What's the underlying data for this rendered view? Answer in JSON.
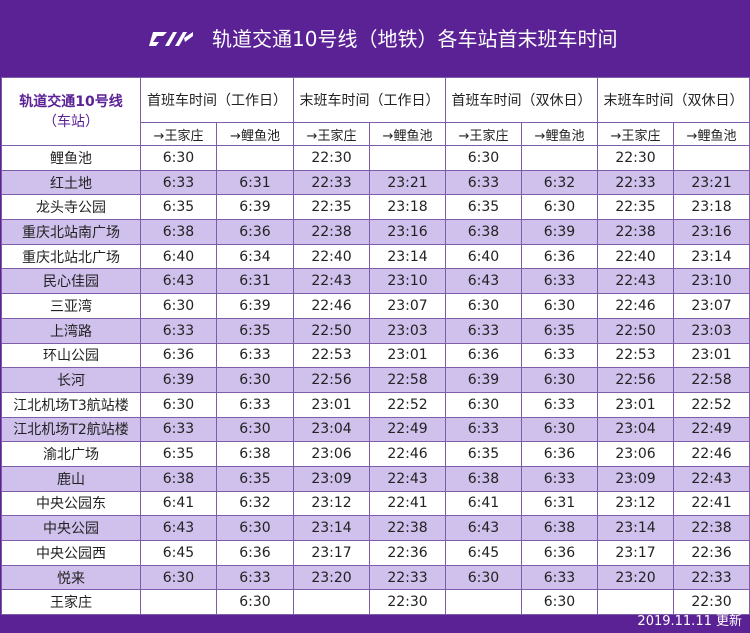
{
  "header": {
    "title": "轨道交通10号线（地铁）各车站首末班车时间",
    "logo_icon": "rail-transit-logo-icon"
  },
  "table": {
    "station_header": "轨道交通10号线",
    "station_subheader": "（车站）",
    "groups": [
      "首班车时间（工作日）",
      "末班车时间（工作日）",
      "首班车时间（双休日）",
      "末班车时间（双休日）"
    ],
    "directions": [
      "→王家庄",
      "→鲤鱼池",
      "→王家庄",
      "→鲤鱼池",
      "→王家庄",
      "→鲤鱼池",
      "→王家庄",
      "→鲤鱼池"
    ],
    "rows": [
      [
        "鲤鱼池",
        "6:30",
        "",
        "22:30",
        "",
        "6:30",
        "",
        "22:30",
        ""
      ],
      [
        "红土地",
        "6:33",
        "6:31",
        "22:33",
        "23:21",
        "6:33",
        "6:32",
        "22:33",
        "23:21"
      ],
      [
        "龙头寺公园",
        "6:35",
        "6:39",
        "22:35",
        "23:18",
        "6:35",
        "6:30",
        "22:35",
        "23:18"
      ],
      [
        "重庆北站南广场",
        "6:38",
        "6:36",
        "22:38",
        "23:16",
        "6:38",
        "6:39",
        "22:38",
        "23:16"
      ],
      [
        "重庆北站北广场",
        "6:40",
        "6:34",
        "22:40",
        "23:14",
        "6:40",
        "6:36",
        "22:40",
        "23:14"
      ],
      [
        "民心佳园",
        "6:43",
        "6:31",
        "22:43",
        "23:10",
        "6:43",
        "6:33",
        "22:43",
        "23:10"
      ],
      [
        "三亚湾",
        "6:30",
        "6:39",
        "22:46",
        "23:07",
        "6:30",
        "6:30",
        "22:46",
        "23:07"
      ],
      [
        "上湾路",
        "6:33",
        "6:35",
        "22:50",
        "23:03",
        "6:33",
        "6:35",
        "22:50",
        "23:03"
      ],
      [
        "环山公园",
        "6:36",
        "6:33",
        "22:53",
        "23:01",
        "6:36",
        "6:33",
        "22:53",
        "23:01"
      ],
      [
        "长河",
        "6:39",
        "6:30",
        "22:56",
        "22:58",
        "6:39",
        "6:30",
        "22:56",
        "22:58"
      ],
      [
        "江北机场T3航站楼",
        "6:30",
        "6:33",
        "23:01",
        "22:52",
        "6:30",
        "6:33",
        "23:01",
        "22:52"
      ],
      [
        "江北机场T2航站楼",
        "6:33",
        "6:30",
        "23:04",
        "22:49",
        "6:33",
        "6:30",
        "23:04",
        "22:49"
      ],
      [
        "渝北广场",
        "6:35",
        "6:38",
        "23:06",
        "22:46",
        "6:35",
        "6:36",
        "23:06",
        "22:46"
      ],
      [
        "鹿山",
        "6:38",
        "6:35",
        "23:09",
        "22:43",
        "6:38",
        "6:33",
        "23:09",
        "22:43"
      ],
      [
        "中央公园东",
        "6:41",
        "6:32",
        "23:12",
        "22:41",
        "6:41",
        "6:31",
        "23:12",
        "22:41"
      ],
      [
        "中央公园",
        "6:43",
        "6:30",
        "23:14",
        "22:38",
        "6:43",
        "6:38",
        "23:14",
        "22:38"
      ],
      [
        "中央公园西",
        "6:45",
        "6:36",
        "23:17",
        "22:36",
        "6:45",
        "6:36",
        "23:17",
        "22:36"
      ],
      [
        "悦来",
        "6:30",
        "6:33",
        "23:20",
        "22:33",
        "6:30",
        "6:33",
        "23:20",
        "22:33"
      ],
      [
        "王家庄",
        "",
        "6:30",
        "",
        "22:30",
        "",
        "6:30",
        "",
        "22:30"
      ]
    ]
  },
  "footer": {
    "updated": "2019.11.11 更新"
  },
  "colors": {
    "brand_purple": "#5b2296",
    "row_stripe": "#cfc0ec",
    "border": "#7d5ca8"
  }
}
